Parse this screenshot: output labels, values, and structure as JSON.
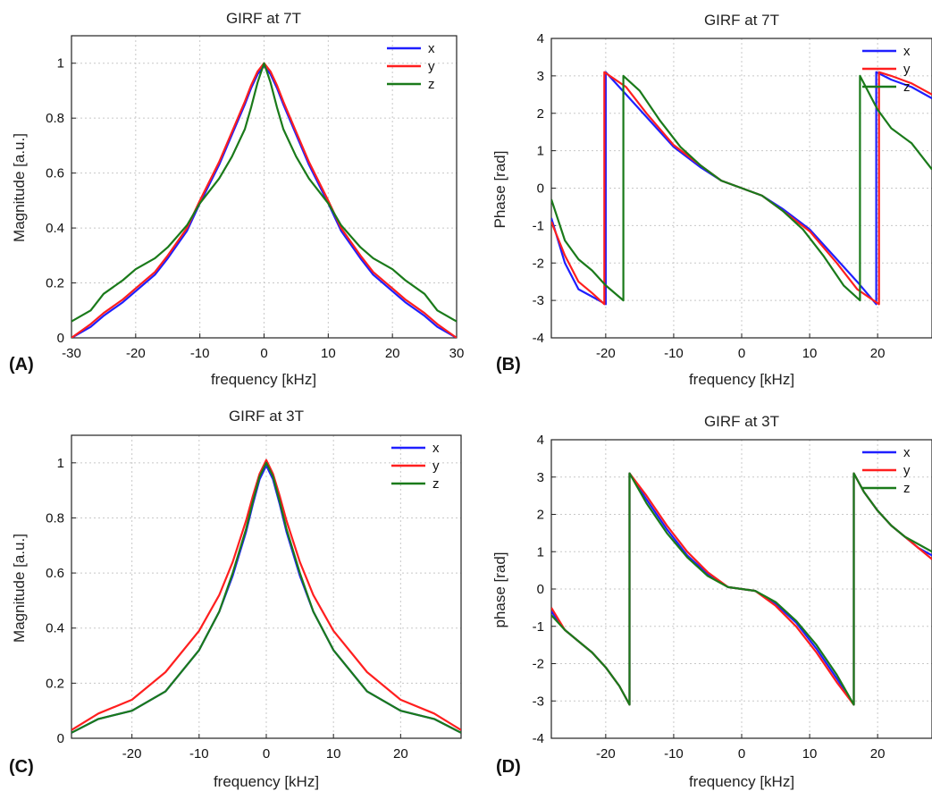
{
  "chart_data": [
    {
      "id": "A",
      "panel_label": "(A)",
      "type": "line",
      "title": "GIRF at 7T",
      "xlabel": "frequency [kHz]",
      "ylabel": "Magnitude [a.u.]",
      "xlim": [
        -30,
        30
      ],
      "ylim": [
        0,
        1.1
      ],
      "xticks": [
        -30,
        -20,
        -10,
        0,
        10,
        20,
        30
      ],
      "yticks": [
        0,
        0.2,
        0.4,
        0.6,
        0.8,
        1
      ],
      "grid": true,
      "legend_position": "top-right",
      "series": [
        {
          "name": "x",
          "color": "#1f1fff",
          "x": [
            -30,
            -27,
            -25,
            -22,
            -20,
            -17,
            -15,
            -12,
            -10,
            -7,
            -5,
            -3,
            -2,
            -1,
            0,
            1,
            2,
            3,
            5,
            7,
            10,
            12,
            15,
            17,
            20,
            22,
            25,
            27,
            30
          ],
          "y": [
            0.0,
            0.04,
            0.08,
            0.13,
            0.17,
            0.23,
            0.29,
            0.39,
            0.49,
            0.63,
            0.74,
            0.85,
            0.91,
            0.96,
            0.99,
            0.96,
            0.91,
            0.85,
            0.74,
            0.63,
            0.49,
            0.39,
            0.29,
            0.23,
            0.17,
            0.13,
            0.08,
            0.04,
            0.0
          ]
        },
        {
          "name": "y",
          "color": "#ff1f1f",
          "x": [
            -30,
            -27,
            -25,
            -22,
            -20,
            -17,
            -15,
            -12,
            -10,
            -7,
            -5,
            -3,
            -2,
            -1,
            0,
            1,
            2,
            3,
            5,
            7,
            10,
            12,
            15,
            17,
            20,
            22,
            25,
            27,
            30
          ],
          "y": [
            0.0,
            0.05,
            0.09,
            0.14,
            0.18,
            0.24,
            0.3,
            0.4,
            0.5,
            0.64,
            0.75,
            0.86,
            0.92,
            0.97,
            1.0,
            0.97,
            0.92,
            0.86,
            0.75,
            0.64,
            0.5,
            0.4,
            0.3,
            0.24,
            0.18,
            0.14,
            0.09,
            0.05,
            0.0
          ]
        },
        {
          "name": "z",
          "color": "#1a7a1a",
          "x": [
            -30,
            -27,
            -25,
            -22,
            -20,
            -17,
            -15,
            -12,
            -10,
            -7,
            -5,
            -3,
            -2,
            -1,
            0,
            1,
            2,
            3,
            5,
            7,
            10,
            12,
            15,
            17,
            20,
            22,
            25,
            27,
            30
          ],
          "y": [
            0.06,
            0.1,
            0.16,
            0.21,
            0.25,
            0.29,
            0.33,
            0.41,
            0.49,
            0.58,
            0.66,
            0.76,
            0.84,
            0.93,
            1.0,
            0.93,
            0.84,
            0.76,
            0.66,
            0.58,
            0.49,
            0.41,
            0.33,
            0.29,
            0.25,
            0.21,
            0.16,
            0.1,
            0.06
          ]
        }
      ]
    },
    {
      "id": "B",
      "panel_label": "(B)",
      "type": "line",
      "title": "GIRF at 7T",
      "xlabel": "frequency [kHz]",
      "ylabel": "Phase [rad]",
      "xlim": [
        -28,
        28
      ],
      "ylim": [
        -4,
        4
      ],
      "xticks": [
        -20,
        -10,
        0,
        10,
        20
      ],
      "yticks": [
        -4,
        -3,
        -2,
        -1,
        0,
        1,
        2,
        3,
        4
      ],
      "grid": true,
      "legend_position": "top-right",
      "series": [
        {
          "name": "x",
          "color": "#1f1fff",
          "x": [
            -28,
            -26,
            -24,
            -22,
            -20,
            -20,
            -17,
            -14,
            -10,
            -6,
            -3,
            0,
            3,
            6,
            10,
            14,
            17,
            19.8,
            19.8,
            22,
            25,
            28
          ],
          "y": [
            -0.8,
            -2.0,
            -2.7,
            -2.9,
            -3.1,
            3.1,
            2.5,
            1.9,
            1.1,
            0.55,
            0.2,
            0.0,
            -0.2,
            -0.55,
            -1.1,
            -1.9,
            -2.5,
            -3.1,
            3.1,
            2.9,
            2.7,
            2.4
          ]
        },
        {
          "name": "y",
          "color": "#ff1f1f",
          "x": [
            -28,
            -26,
            -24,
            -22,
            -20.2,
            -20.2,
            -17,
            -14,
            -10,
            -6,
            -3,
            0,
            3,
            6,
            10,
            14,
            17,
            20.2,
            20.2,
            22,
            25,
            28
          ],
          "y": [
            -0.9,
            -1.8,
            -2.5,
            -2.8,
            -3.1,
            3.1,
            2.7,
            2.0,
            1.15,
            0.6,
            0.2,
            0.0,
            -0.2,
            -0.6,
            -1.15,
            -2.0,
            -2.7,
            -3.1,
            3.1,
            3.0,
            2.8,
            2.5
          ]
        },
        {
          "name": "z",
          "color": "#1a7a1a",
          "x": [
            -28,
            -26,
            -24,
            -22,
            -20,
            -17.4,
            -17.4,
            -15,
            -12,
            -9,
            -6,
            -3,
            0,
            3,
            6,
            9,
            12,
            15,
            17.4,
            17.4,
            20,
            22,
            25,
            28
          ],
          "y": [
            -0.3,
            -1.4,
            -1.9,
            -2.2,
            -2.6,
            -3.0,
            3.0,
            2.6,
            1.8,
            1.1,
            0.6,
            0.2,
            0.0,
            -0.2,
            -0.6,
            -1.1,
            -1.8,
            -2.6,
            -3.0,
            3.0,
            2.1,
            1.6,
            1.2,
            0.5
          ]
        }
      ]
    },
    {
      "id": "C",
      "panel_label": "(C)",
      "type": "line",
      "title": "GIRF at 3T",
      "xlabel": "frequency [kHz]",
      "ylabel": "Magnitude [a.u.]",
      "xlim": [
        -29,
        29
      ],
      "ylim": [
        0,
        1.1
      ],
      "xticks": [
        -20,
        -10,
        0,
        10,
        20
      ],
      "yticks": [
        0,
        0.2,
        0.4,
        0.6,
        0.8,
        1
      ],
      "grid": true,
      "legend_position": "top-right",
      "series": [
        {
          "name": "x",
          "color": "#1f1fff",
          "x": [
            -29,
            -25,
            -20,
            -15,
            -10,
            -7,
            -5,
            -3,
            -2,
            -1,
            0,
            1,
            2,
            3,
            5,
            7,
            10,
            15,
            20,
            25,
            29
          ],
          "y": [
            0.02,
            0.07,
            0.1,
            0.17,
            0.32,
            0.46,
            0.59,
            0.75,
            0.85,
            0.94,
            0.99,
            0.94,
            0.85,
            0.75,
            0.59,
            0.46,
            0.32,
            0.17,
            0.1,
            0.07,
            0.02
          ]
        },
        {
          "name": "y",
          "color": "#ff1f1f",
          "x": [
            -29,
            -25,
            -20,
            -15,
            -10,
            -7,
            -5,
            -3,
            -2,
            -1,
            0,
            1,
            2,
            3,
            5,
            7,
            10,
            15,
            20,
            25,
            29
          ],
          "y": [
            0.03,
            0.09,
            0.14,
            0.24,
            0.39,
            0.52,
            0.64,
            0.79,
            0.88,
            0.96,
            1.01,
            0.96,
            0.88,
            0.79,
            0.64,
            0.52,
            0.39,
            0.24,
            0.14,
            0.09,
            0.03
          ]
        },
        {
          "name": "z",
          "color": "#1a7a1a",
          "x": [
            -29,
            -25,
            -20,
            -15,
            -10,
            -7,
            -5,
            -3,
            -2,
            -1,
            0,
            1,
            2,
            3,
            5,
            7,
            10,
            15,
            20,
            25,
            29
          ],
          "y": [
            0.02,
            0.07,
            0.1,
            0.17,
            0.32,
            0.46,
            0.6,
            0.76,
            0.86,
            0.95,
            1.0,
            0.95,
            0.86,
            0.76,
            0.6,
            0.46,
            0.32,
            0.17,
            0.1,
            0.07,
            0.02
          ]
        }
      ]
    },
    {
      "id": "D",
      "panel_label": "(D)",
      "type": "line",
      "title": "GIRF at 3T",
      "xlabel": "frequency [kHz]",
      "ylabel": "phase [rad]",
      "xlim": [
        -28,
        28
      ],
      "ylim": [
        -4,
        4
      ],
      "xticks": [
        -20,
        -10,
        0,
        10,
        20
      ],
      "yticks": [
        -4,
        -3,
        -2,
        -1,
        0,
        1,
        2,
        3,
        4
      ],
      "grid": true,
      "legend_position": "top-right",
      "series": [
        {
          "name": "x",
          "color": "#1f1fff",
          "x": [
            -28,
            -26,
            -24,
            -22,
            -20,
            -18,
            -16.5,
            -16.5,
            -14,
            -11,
            -8,
            -5,
            -2,
            0,
            2,
            5,
            8,
            11,
            14,
            16.5,
            16.5,
            18,
            20,
            22,
            24,
            26,
            28
          ],
          "y": [
            -0.6,
            -1.1,
            -1.4,
            -1.7,
            -2.1,
            -2.6,
            -3.1,
            3.1,
            2.4,
            1.6,
            0.9,
            0.4,
            0.05,
            0.0,
            -0.05,
            -0.4,
            -0.9,
            -1.6,
            -2.4,
            -3.1,
            3.1,
            2.6,
            2.1,
            1.7,
            1.4,
            1.1,
            0.9
          ]
        },
        {
          "name": "y",
          "color": "#ff1f1f",
          "x": [
            -28,
            -26,
            -24,
            -22,
            -20,
            -18,
            -16.5,
            -16.5,
            -14,
            -11,
            -8,
            -5,
            -2,
            0,
            2,
            5,
            8,
            11,
            14,
            16.5,
            16.5,
            18,
            20,
            22,
            24,
            26,
            28
          ],
          "y": [
            -0.5,
            -1.1,
            -1.4,
            -1.7,
            -2.1,
            -2.6,
            -3.1,
            3.1,
            2.5,
            1.7,
            1.0,
            0.45,
            0.05,
            0.0,
            -0.05,
            -0.45,
            -1.0,
            -1.7,
            -2.5,
            -3.1,
            3.1,
            2.6,
            2.1,
            1.7,
            1.4,
            1.1,
            0.8
          ]
        },
        {
          "name": "z",
          "color": "#1a7a1a",
          "x": [
            -28,
            -26,
            -24,
            -22,
            -20,
            -18,
            -16.5,
            -16.5,
            -14,
            -11,
            -8,
            -5,
            -2,
            0,
            2,
            5,
            8,
            11,
            14,
            16.5,
            16.5,
            18,
            20,
            22,
            24,
            26,
            28
          ],
          "y": [
            -0.7,
            -1.1,
            -1.4,
            -1.7,
            -2.1,
            -2.6,
            -3.1,
            3.1,
            2.3,
            1.5,
            0.85,
            0.35,
            0.05,
            0.0,
            -0.05,
            -0.35,
            -0.85,
            -1.5,
            -2.3,
            -3.1,
            3.1,
            2.6,
            2.1,
            1.7,
            1.4,
            1.2,
            1.0
          ]
        }
      ]
    }
  ]
}
